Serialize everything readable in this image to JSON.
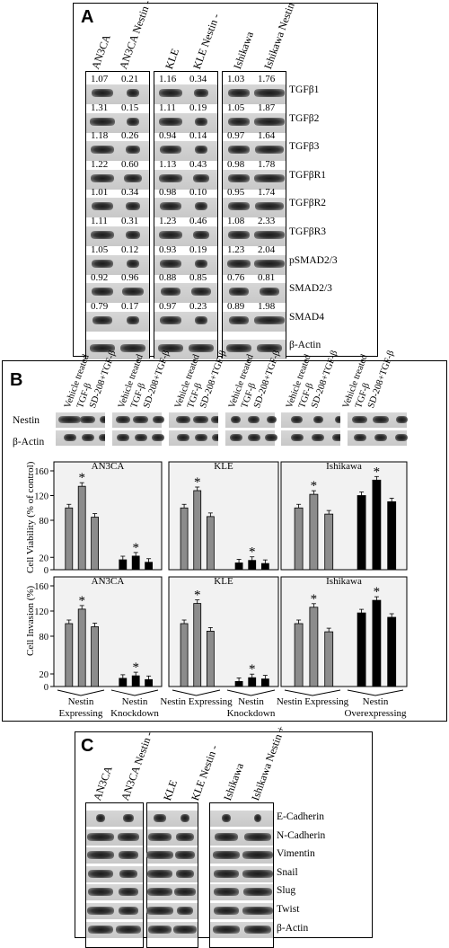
{
  "panelA": {
    "label": "A",
    "lanes": [
      "AN3CA",
      "AN3CA Nestin -",
      "KLE",
      "KLE Nestin -",
      "Ishikawa",
      "Ishikawa Nestin +"
    ],
    "rows": [
      {
        "name": "TGFβ1",
        "values": [
          "1.07",
          "0.21",
          "1.16",
          "0.34",
          "1.03",
          "1.76"
        ]
      },
      {
        "name": "TGFβ2",
        "values": [
          "1.31",
          "0.15",
          "1.11",
          "0.19",
          "1.05",
          "1.87"
        ]
      },
      {
        "name": "TGFβ3",
        "values": [
          "1.18",
          "0.26",
          "0.94",
          "0.14",
          "0.97",
          "1.64"
        ]
      },
      {
        "name": "TGFβR1",
        "values": [
          "1.22",
          "0.60",
          "1.13",
          "0.43",
          "0.98",
          "1.78"
        ]
      },
      {
        "name": "TGFβR2",
        "values": [
          "1.01",
          "0.34",
          "0.98",
          "0.10",
          "0.95",
          "1.74"
        ]
      },
      {
        "name": "TGFβR3",
        "values": [
          "1.11",
          "0.31",
          "1.23",
          "0.46",
          "1.08",
          "2.33"
        ]
      },
      {
        "name": "pSMAD2/3",
        "values": [
          "1.05",
          "0.12",
          "0.93",
          "0.19",
          "1.23",
          "2.04"
        ]
      },
      {
        "name": "SMAD2/3",
        "values": [
          "0.92",
          "0.96",
          "0.88",
          "0.85",
          "0.76",
          "0.81"
        ]
      },
      {
        "name": "SMAD4",
        "values": [
          "0.79",
          "0.17",
          "0.97",
          "0.23",
          "0.89",
          "1.98"
        ]
      },
      {
        "name": "β-Actin",
        "values": []
      }
    ]
  },
  "panelB": {
    "label": "B",
    "treatments": [
      "Vehicle treated",
      "TGF-β",
      "SD-208+TGF-β"
    ],
    "blot_rows": [
      "Nestin",
      "β-Actin"
    ],
    "cell_lines": [
      "AN3CA",
      "KLE",
      "Ishikawa"
    ],
    "ylabel_top": "Cell Viability (% of control)",
    "ylabel_bottom": "Cell Invasion (%)",
    "yticks": [
      "0",
      "20",
      "80",
      "120",
      "160"
    ],
    "star": "*",
    "groups": [
      [
        "Nestin Expressing",
        "Nestin Knockdown"
      ],
      [
        "Nestin Expressing",
        "Nestin Knockdown"
      ],
      [
        "Nestin Expressing",
        "Nestin Overexpressing"
      ]
    ]
  },
  "chart_data": [
    {
      "type": "bar",
      "title": "AN3CA",
      "ylabel": "Cell Viability (% of control)",
      "categories": [
        "Vehicle treated",
        "TGF-β",
        "SD-208+TGF-β"
      ],
      "series": [
        {
          "name": "Nestin Expressing",
          "values": [
            100,
            135,
            85
          ]
        },
        {
          "name": "Nestin Knockdown",
          "values": [
            16,
            22,
            12
          ]
        }
      ],
      "yticks": [
        0,
        20,
        80,
        120,
        160
      ]
    },
    {
      "type": "bar",
      "title": "KLE",
      "ylabel": "Cell Viability (% of control)",
      "categories": [
        "Vehicle treated",
        "TGF-β",
        "SD-208+TGF-β"
      ],
      "series": [
        {
          "name": "Nestin Expressing",
          "values": [
            100,
            128,
            86
          ]
        },
        {
          "name": "Nestin Knockdown",
          "values": [
            11,
            15,
            10
          ]
        }
      ],
      "yticks": [
        0,
        20,
        80,
        120,
        160
      ]
    },
    {
      "type": "bar",
      "title": "Ishikawa",
      "ylabel": "Cell Viability (% of control)",
      "categories": [
        "Vehicle treated",
        "TGF-β",
        "SD-208+TGF-β"
      ],
      "series": [
        {
          "name": "Nestin Expressing",
          "values": [
            100,
            122,
            90
          ]
        },
        {
          "name": "Nestin Overexpressing",
          "values": [
            120,
            145,
            110
          ]
        }
      ],
      "yticks": [
        0,
        20,
        80,
        120,
        160
      ]
    },
    {
      "type": "bar",
      "title": "AN3CA",
      "ylabel": "Cell Invasion (%)",
      "categories": [
        "Vehicle treated",
        "TGF-β",
        "SD-208+TGF-β"
      ],
      "series": [
        {
          "name": "Nestin Expressing",
          "values": [
            100,
            123,
            95
          ]
        },
        {
          "name": "Nestin Knockdown",
          "values": [
            13,
            17,
            11
          ]
        }
      ],
      "yticks": [
        0,
        20,
        80,
        120,
        160
      ]
    },
    {
      "type": "bar",
      "title": "KLE",
      "ylabel": "Cell Invasion (%)",
      "categories": [
        "Vehicle treated",
        "TGF-β",
        "SD-208+TGF-β"
      ],
      "series": [
        {
          "name": "Nestin Expressing",
          "values": [
            100,
            132,
            88
          ]
        },
        {
          "name": "Nestin Knockdown",
          "values": [
            8,
            14,
            12
          ]
        }
      ],
      "yticks": [
        0,
        20,
        80,
        120,
        160
      ]
    },
    {
      "type": "bar",
      "title": "Ishikawa",
      "ylabel": "Cell Invasion (%)",
      "categories": [
        "Vehicle treated",
        "TGF-β",
        "SD-208+TGF-β"
      ],
      "series": [
        {
          "name": "Nestin Expressing",
          "values": [
            100,
            126,
            87
          ]
        },
        {
          "name": "Nestin Overexpressing",
          "values": [
            117,
            137,
            110
          ]
        }
      ],
      "yticks": [
        0,
        20,
        80,
        120,
        160
      ]
    }
  ],
  "panelC": {
    "label": "C",
    "lanes": [
      "AN3CA",
      "AN3CA Nestin -",
      "KLE",
      "KLE Nestin -",
      "Ishikawa",
      "Ishikawa Nestin +"
    ],
    "rows": [
      "E-Cadherin",
      "N-Cadherin",
      "Vimentin",
      "Snail",
      "Slug",
      "Twist",
      "β-Actin"
    ]
  }
}
